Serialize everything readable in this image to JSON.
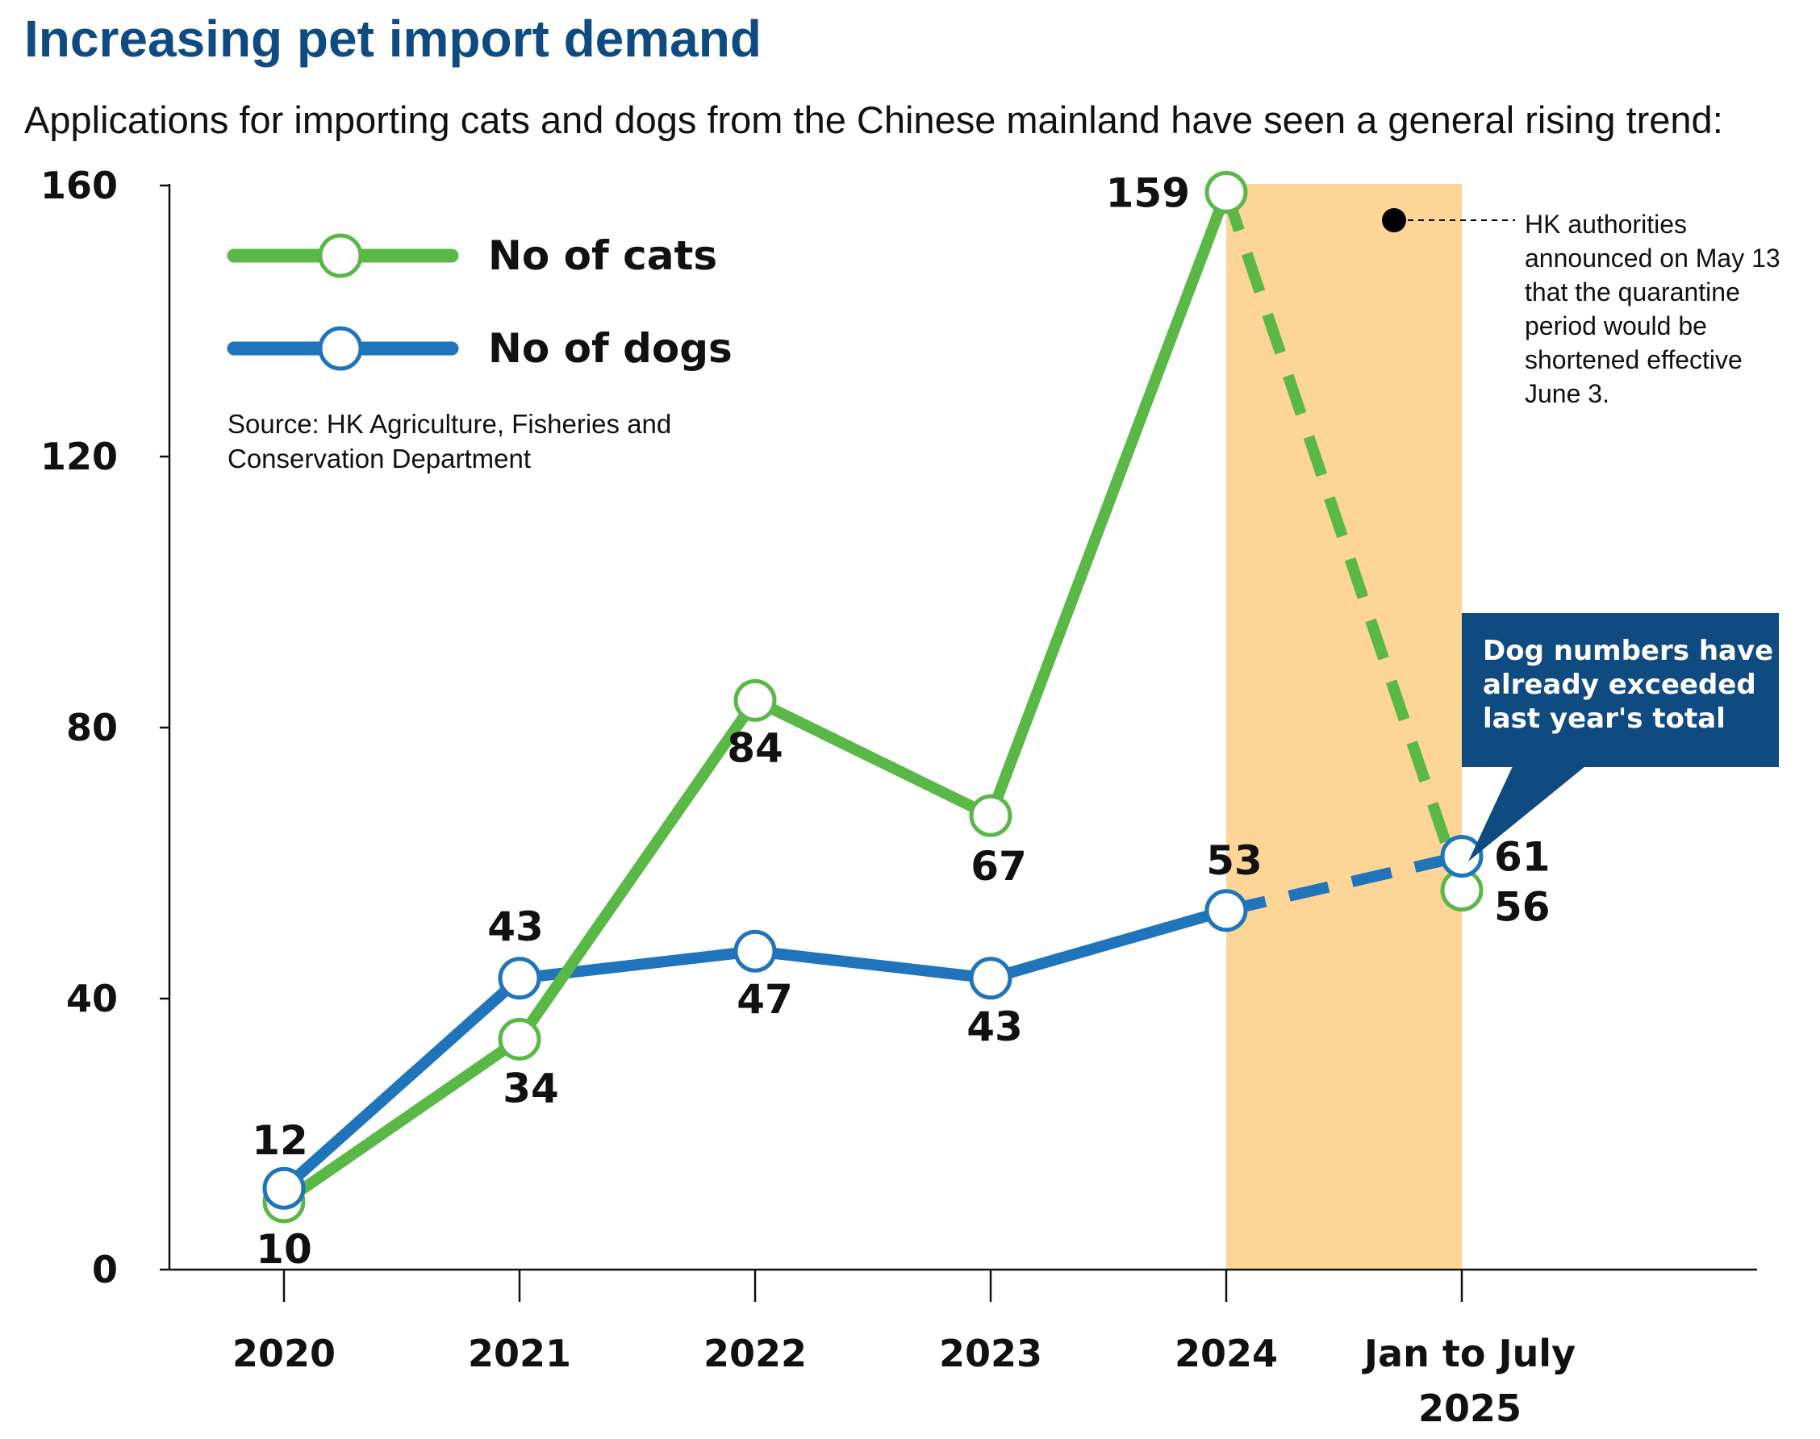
{
  "title": "Increasing pet import demand",
  "subtitle": "Applications for importing cats and dogs from the Chinese mainland have seen a general rising trend:",
  "source": [
    "Source: HK Agriculture, Fisheries and",
    "Conservation Department"
  ],
  "annotation": {
    "lines": [
      "HK authorities",
      "announced on May 13",
      "that the quarantine",
      "period would be",
      "shortened effective",
      "June 3."
    ]
  },
  "callout": {
    "lines": [
      "Dog numbers have",
      "already exceeded",
      "last year's total"
    ]
  },
  "colors": {
    "cats": "#5ab847",
    "dogs": "#1f74bc",
    "highlight": "#fcd597",
    "callout_bg": "#0f4a80",
    "title": "#0f4a80"
  },
  "chart_data": {
    "type": "line",
    "categories": [
      "2020",
      "2021",
      "2022",
      "2023",
      "2024",
      "Jan to July 2025"
    ],
    "category_label_lines": [
      [
        "2020"
      ],
      [
        "2021"
      ],
      [
        "2022"
      ],
      [
        "2023"
      ],
      [
        "2024"
      ],
      [
        "Jan to July",
        "2025"
      ]
    ],
    "series": [
      {
        "name": "No of cats",
        "values": [
          10,
          34,
          84,
          67,
          159,
          56
        ],
        "color": "#5ab847",
        "dashed_last_segment": true
      },
      {
        "name": "No of dogs",
        "values": [
          12,
          43,
          47,
          43,
          53,
          61
        ],
        "color": "#1f74bc",
        "dashed_last_segment": true
      }
    ],
    "ylim": [
      0,
      160
    ],
    "yticks": [
      0,
      40,
      80,
      120,
      160
    ],
    "highlight_range": [
      "2024",
      "Jan to July 2025"
    ],
    "grid": false,
    "legend": "top-left",
    "xlabel": "",
    "ylabel": ""
  }
}
